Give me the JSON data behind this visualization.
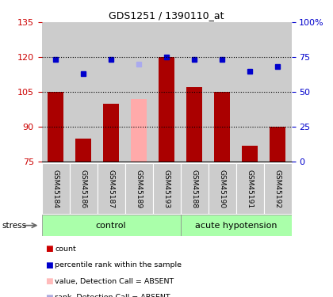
{
  "title": "GDS1251 / 1390110_at",
  "samples": [
    "GSM45184",
    "GSM45186",
    "GSM45187",
    "GSM45189",
    "GSM45193",
    "GSM45188",
    "GSM45190",
    "GSM45191",
    "GSM45192"
  ],
  "bar_values": [
    105,
    85,
    100,
    102,
    120,
    107,
    105,
    82,
    90
  ],
  "bar_colors": [
    "#aa0000",
    "#aa0000",
    "#aa0000",
    "#ffaaaa",
    "#aa0000",
    "#aa0000",
    "#aa0000",
    "#aa0000",
    "#aa0000"
  ],
  "rank_values": [
    119,
    113,
    119,
    117,
    120,
    119,
    119,
    114,
    116
  ],
  "rank_colors": [
    "#0000cc",
    "#0000cc",
    "#0000cc",
    "#aaaaee",
    "#0000cc",
    "#0000cc",
    "#0000cc",
    "#0000cc",
    "#0000cc"
  ],
  "ylim_left": [
    75,
    135
  ],
  "ylim_right": [
    0,
    100
  ],
  "yticks_left": [
    75,
    90,
    105,
    120,
    135
  ],
  "yticks_right": [
    0,
    25,
    50,
    75,
    100
  ],
  "dotted_lines": [
    90,
    105,
    120
  ],
  "n_control": 5,
  "n_hypo": 4,
  "control_label": "control",
  "hypotension_label": "acute hypotension",
  "stress_label": "stress",
  "legend_items": [
    {
      "label": "count",
      "color": "#cc0000"
    },
    {
      "label": "percentile rank within the sample",
      "color": "#0000cc"
    },
    {
      "label": "value, Detection Call = ABSENT",
      "color": "#ffbbbb"
    },
    {
      "label": "rank, Detection Call = ABSENT",
      "color": "#aaaadd"
    }
  ],
  "left_axis_color": "#cc0000",
  "right_axis_color": "#0000cc",
  "group_bg_color": "#aaffaa",
  "sample_bg_color": "#cccccc",
  "bar_width": 0.55
}
